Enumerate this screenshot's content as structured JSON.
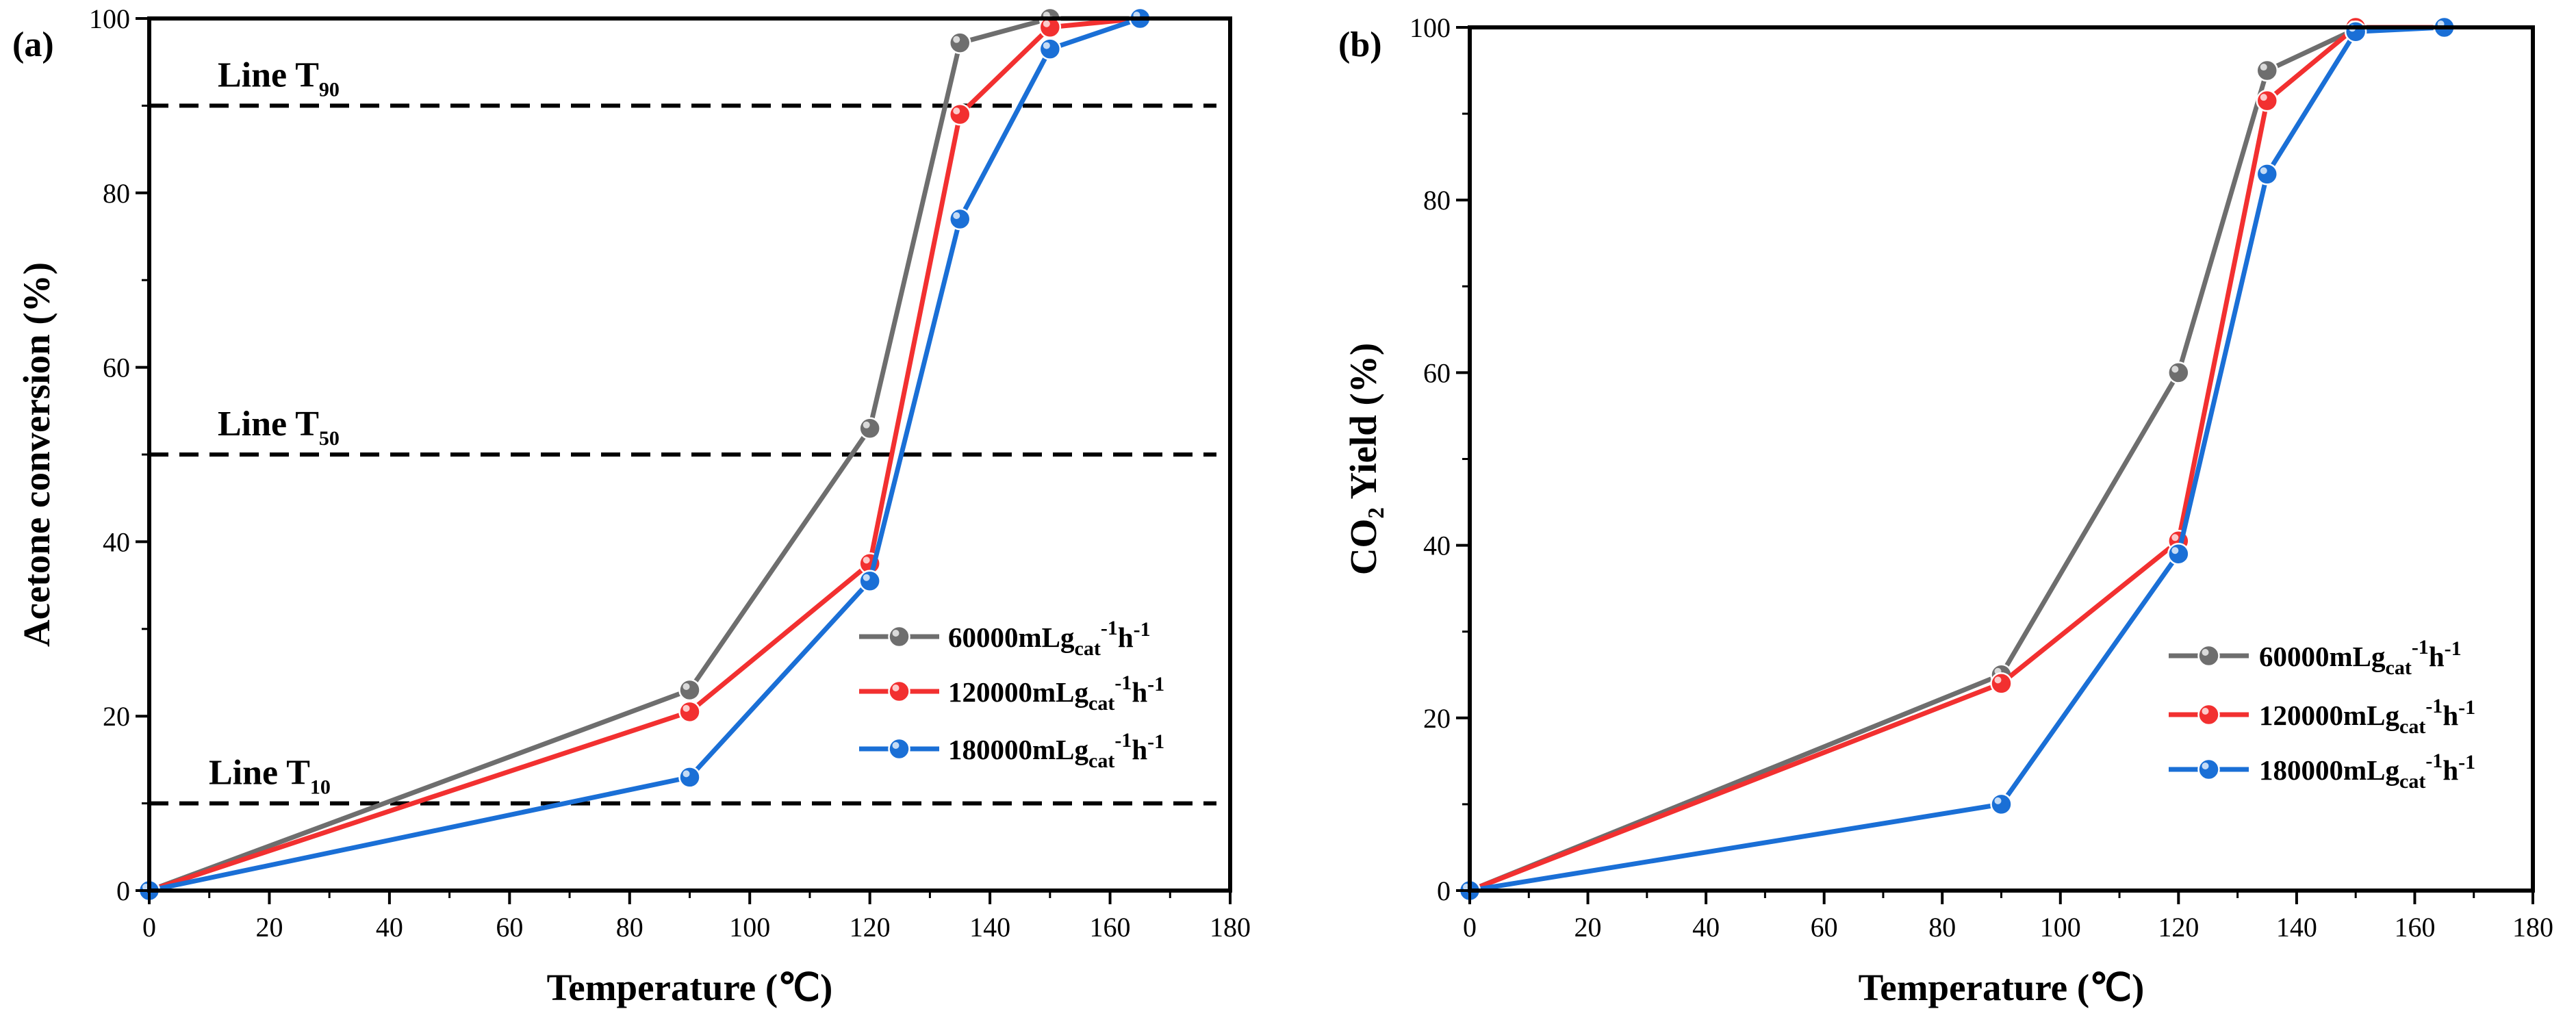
{
  "chart_data": [
    {
      "type": "line",
      "panel_label": "(a)",
      "xlabel": "Temperature (℃)",
      "ylabel": "Acetone conversion (%)",
      "xlim": [
        0,
        180
      ],
      "ylim": [
        0,
        100
      ],
      "xticks": [
        0,
        20,
        40,
        60,
        80,
        100,
        120,
        140,
        160,
        180
      ],
      "yticks": [
        0,
        20,
        40,
        60,
        80,
        100
      ],
      "grid": false,
      "legend_position": "right",
      "reference_lines": [
        {
          "value": 90,
          "label_main": "Line T",
          "label_sub": "90"
        },
        {
          "value": 50,
          "label_main": "Line T",
          "label_sub": "50"
        },
        {
          "value": 10,
          "label_main": "Line T",
          "label_sub": "10"
        }
      ],
      "series": [
        {
          "legend_main": "60000mLg",
          "legend_sub": "cat",
          "legend_sup1": "-1",
          "legend_mid": "h",
          "legend_sup2": "-1",
          "color": "#6e6e6e",
          "x": [
            0,
            90,
            120,
            135,
            150,
            165
          ],
          "y": [
            0,
            23,
            53,
            97.2,
            100,
            100
          ]
        },
        {
          "legend_main": "120000mLg",
          "legend_sub": "cat",
          "legend_sup1": "-1",
          "legend_mid": "h",
          "legend_sup2": "-1",
          "color": "#f23030",
          "x": [
            0,
            90,
            120,
            135,
            150,
            165
          ],
          "y": [
            0,
            20.5,
            37.5,
            89,
            99,
            100
          ]
        },
        {
          "legend_main": "180000mLg",
          "legend_sub": "cat",
          "legend_sup1": "-1",
          "legend_mid": "h",
          "legend_sup2": "-1",
          "color": "#1a6fd6",
          "x": [
            0,
            90,
            120,
            135,
            150,
            165
          ],
          "y": [
            0,
            13,
            35.5,
            77,
            96.5,
            100
          ]
        }
      ]
    },
    {
      "type": "line",
      "panel_label": "(b)",
      "xlabel": "Temperature (℃)",
      "ylabel": "CO₂ Yield (%)",
      "xlim": [
        0,
        180
      ],
      "ylim": [
        0,
        100
      ],
      "xticks": [
        0,
        20,
        40,
        60,
        80,
        100,
        120,
        140,
        160,
        180
      ],
      "yticks": [
        0,
        20,
        40,
        60,
        80,
        100
      ],
      "grid": false,
      "legend_position": "right",
      "reference_lines": [],
      "series": [
        {
          "legend_main": "60000mLg",
          "legend_sub": "cat",
          "legend_sup1": "-1",
          "legend_mid": "h",
          "legend_sup2": "-1",
          "color": "#6e6e6e",
          "x": [
            0,
            90,
            120,
            135,
            150,
            165
          ],
          "y": [
            0,
            25,
            60,
            95,
            99.8,
            100
          ]
        },
        {
          "legend_main": "120000mLg",
          "legend_sub": "cat",
          "legend_sup1": "-1",
          "legend_mid": "h",
          "legend_sup2": "-1",
          "color": "#f23030",
          "x": [
            0,
            90,
            120,
            135,
            150,
            165
          ],
          "y": [
            0,
            24,
            40.5,
            91.5,
            100,
            100
          ]
        },
        {
          "legend_main": "180000mLg",
          "legend_sub": "cat",
          "legend_sup1": "-1",
          "legend_mid": "h",
          "legend_sup2": "-1",
          "color": "#1a6fd6",
          "x": [
            0,
            90,
            120,
            135,
            150,
            165
          ],
          "y": [
            0,
            10,
            39,
            83,
            99.5,
            100
          ]
        }
      ]
    }
  ]
}
